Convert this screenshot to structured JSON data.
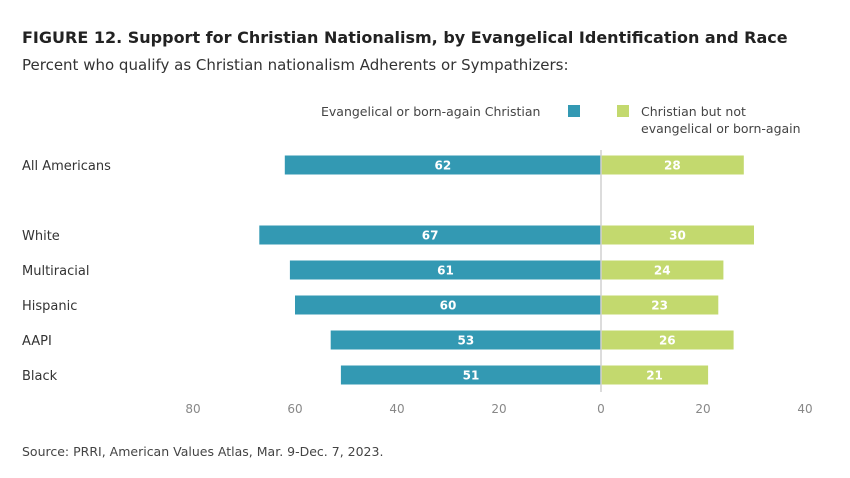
{
  "title": "FIGURE 12. Support for Christian Nationalism, by Evangelical Identification and Race",
  "subtitle": "Percent who qualify as Christian nationalism Adherents or Sympathizers:",
  "source": "Source: PRRI, American Values Atlas, Mar. 9-Dec. 7, 2023.",
  "chart_data": {
    "type": "bar",
    "orientation": "horizontal-diverging",
    "categories": [
      "All Americans",
      "White",
      "Multiracial",
      "Hispanic",
      "AAPI",
      "Black"
    ],
    "series": [
      {
        "name": "Evangelical or born-again Christian",
        "color": "#3399b3",
        "direction": "left",
        "values": [
          62,
          67,
          61,
          60,
          53,
          51
        ]
      },
      {
        "name": "Christian but not evangelical or born-again",
        "color": "#c3d96e",
        "direction": "right",
        "values": [
          28,
          30,
          24,
          23,
          26,
          21
        ]
      }
    ],
    "xticks": [
      "80",
      "60",
      "40",
      "20",
      "0",
      "20",
      "40"
    ],
    "xlim": [
      -80,
      40
    ],
    "legend_position": "top-right",
    "grid": false
  },
  "legend": {
    "evangelical": "Evangelical or born-again Christian",
    "other_line1": "Christian but not",
    "other_line2": "evangelical or born-again"
  }
}
